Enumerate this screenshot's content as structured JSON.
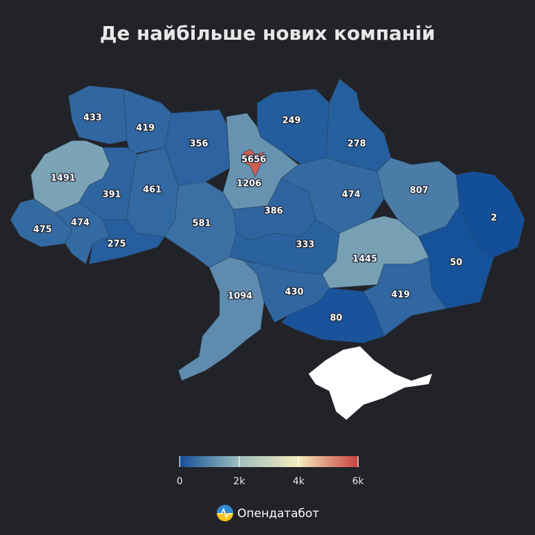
{
  "title": "Де найбільше нових компаній",
  "map": {
    "type": "choropleth",
    "values": [
      433,
      419,
      356,
      249,
      278,
      1491,
      391,
      461,
      5656,
      1206,
      474,
      807,
      475,
      474,
      275,
      581,
      386,
      2,
      333,
      1445,
      50,
      1094,
      430,
      419,
      80
    ]
  },
  "legend": {
    "range": [
      0,
      6000
    ],
    "colors": [
      "#134f99",
      "#9ebfbf",
      "#f5ecbc",
      "#c8403c"
    ],
    "ticks": [
      0,
      {
        "value": 2000,
        "label": "2k"
      },
      {
        "value": 4000,
        "label": "4k"
      },
      {
        "value": 6000,
        "label": "6k"
      }
    ]
  },
  "brand": "Опендатабот"
}
